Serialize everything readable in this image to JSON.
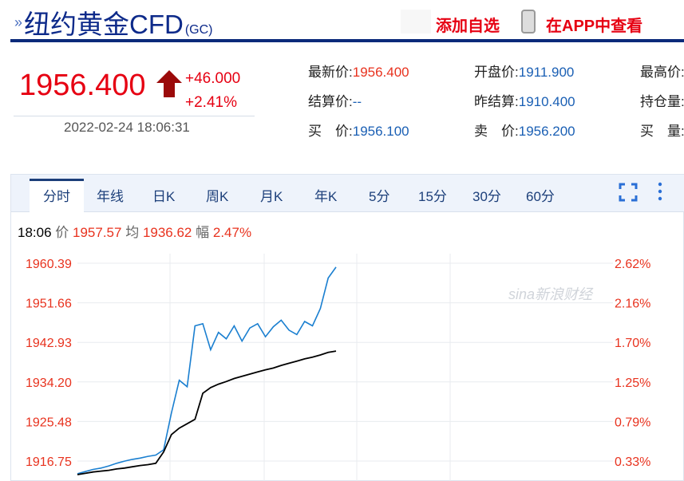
{
  "header": {
    "title": "纽约黄金CFD",
    "code": "(GC)",
    "add_watch": "添加自选",
    "view_app": "在APP中查看"
  },
  "quote": {
    "price": "1956.400",
    "change": "+46.000",
    "change_pct": "+2.41%",
    "datetime": "2022-02-24 18:06:31",
    "fields": [
      {
        "label": "最新价:",
        "value": "1956.400"
      },
      {
        "label": "开盘价:",
        "value": "1911.900"
      },
      {
        "label": "最高价:",
        "value": ""
      },
      {
        "label": "结算价:",
        "value": "--"
      },
      {
        "label": "昨结算:",
        "value": "1910.400"
      },
      {
        "label": "持仓量:",
        "value": ""
      },
      {
        "label": "买　价:",
        "value": "1956.100"
      },
      {
        "label": "卖　价:",
        "value": "1956.200"
      },
      {
        "label": "买　量:",
        "value": ""
      }
    ]
  },
  "tabs": [
    "分时",
    "年线",
    "日K",
    "周K",
    "月K",
    "年K",
    "5分",
    "15分",
    "30分",
    "60分"
  ],
  "active_tab": "分时",
  "info": {
    "time": "18:06",
    "price_label": "价",
    "price": "1957.57",
    "avg_label": "均",
    "avg": "1936.62",
    "amp_label": "幅",
    "amp": "2.47%"
  },
  "watermark": "sina新浪财经",
  "colors": {
    "up": "#e60012",
    "price_line": "#1a7fd0",
    "avg_line": "#000000",
    "brand": "#0b2a7a"
  },
  "chart_data": {
    "type": "line",
    "title": "",
    "xlabel": "",
    "ylabel": "",
    "grid": true,
    "ylim": [
      1912.0,
      1960.39
    ],
    "y_ticks": [
      "1960.39",
      "1951.66",
      "1942.93",
      "1934.20",
      "1925.48",
      "1916.75"
    ],
    "y2_ticks": [
      "2.62%",
      "2.16%",
      "1.70%",
      "1.25%",
      "0.79%",
      "0.33%"
    ],
    "series": [
      {
        "values": [
          1912.0,
          1912.5,
          1913.0,
          1913.3,
          1913.8,
          1914.4,
          1914.9,
          1915.3,
          1915.6,
          1916.0,
          1916.3,
          1917.5,
          1926.0,
          1933.5,
          1932.0,
          1946.0,
          1946.5,
          1940.5,
          1944.5,
          1943.0,
          1946.0,
          1942.5,
          1945.5,
          1946.5,
          1943.5,
          1945.8,
          1947.3,
          1945.0,
          1944.0,
          1947.0,
          1946.0,
          1950.0,
          1957.0,
          1959.5
        ]
      },
      {
        "values": [
          1911.8,
          1912.1,
          1912.4,
          1912.6,
          1912.8,
          1913.1,
          1913.3,
          1913.6,
          1913.9,
          1914.1,
          1914.4,
          1917.0,
          1921.0,
          1922.5,
          1923.5,
          1924.5,
          1930.5,
          1931.8,
          1932.6,
          1933.2,
          1933.9,
          1934.4,
          1934.9,
          1935.4,
          1935.9,
          1936.3,
          1936.9,
          1937.4,
          1937.9,
          1938.4,
          1938.8,
          1939.3,
          1939.9,
          1940.2
        ]
      }
    ]
  }
}
